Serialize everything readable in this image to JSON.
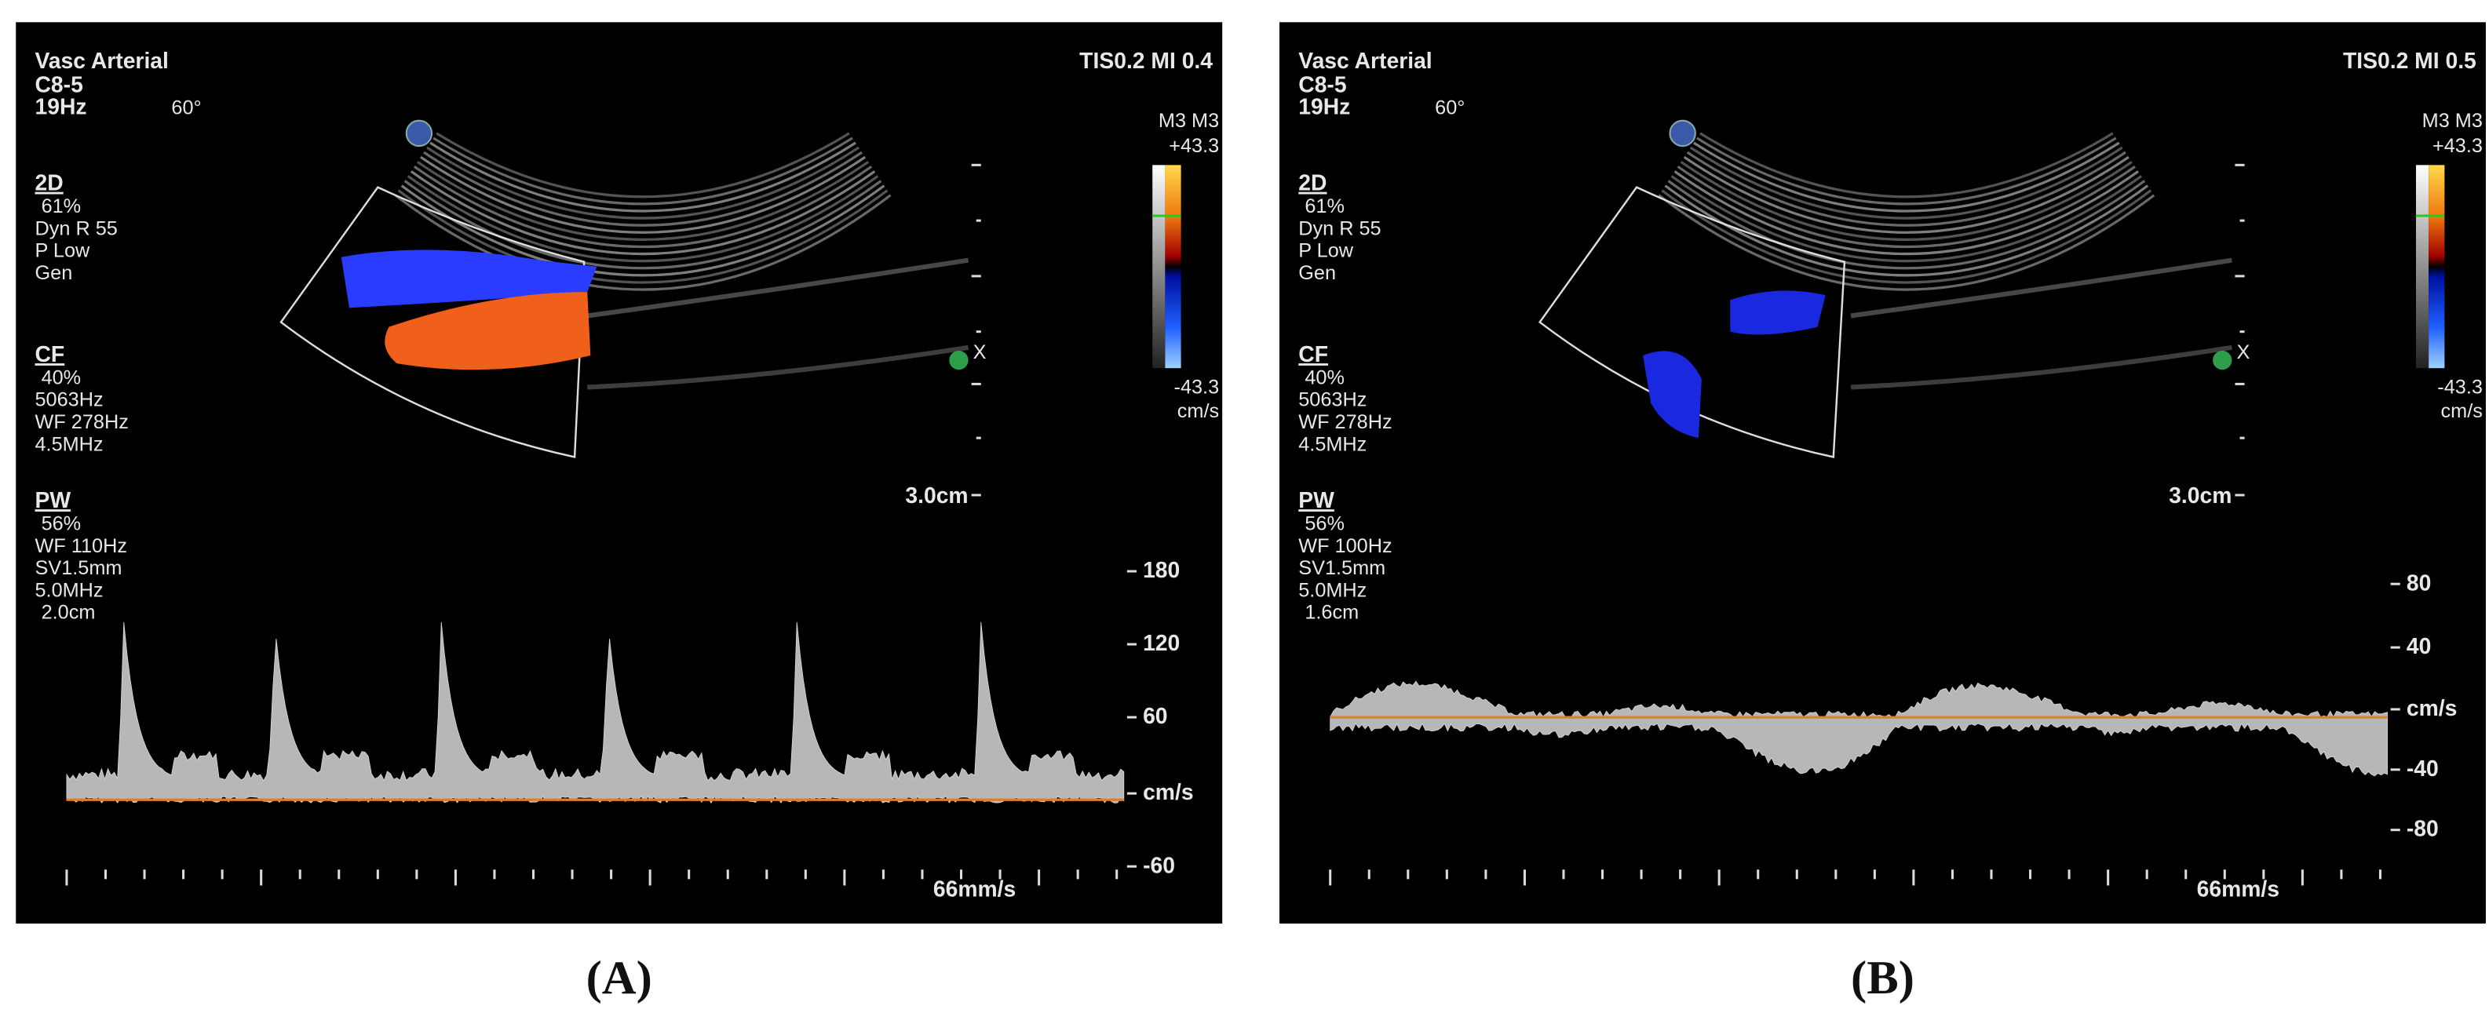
{
  "panels": [
    {
      "label": "(A)",
      "mode": "Vasc Arterial",
      "probe": "C8-5",
      "frame_rate": "19Hz",
      "angle": "60°",
      "indices": "TIS0.2  MI 0.4",
      "sections": [
        {
          "title": "2D",
          "lines": [
            "61%",
            "Dyn R 55",
            "P Low",
            "Gen"
          ]
        },
        {
          "title": "CF",
          "lines": [
            "40%",
            "5063Hz",
            "WF 278Hz",
            "4.5MHz"
          ]
        },
        {
          "title": "PW",
          "lines": [
            "56%",
            "WF 110Hz",
            "SV1.5mm",
            "5.0MHz",
            "2.0cm"
          ]
        }
      ],
      "depth": "3.0cm",
      "color_bar": {
        "top": "M3 M3",
        "max": "+43.3",
        "min": "-43.3",
        "unit": "cm/s"
      },
      "marker": "X",
      "velocity_scale": [
        "180",
        "120",
        "60",
        "cm/s",
        "-60"
      ],
      "sweep": "66mm/s"
    },
    {
      "label": "(B)",
      "mode": "Vasc Arterial",
      "probe": "C8-5",
      "frame_rate": "19Hz",
      "angle": "60°",
      "indices": "TIS0.2  MI 0.5",
      "sections": [
        {
          "title": "2D",
          "lines": [
            "61%",
            "Dyn R 55",
            "P Low",
            "Gen"
          ]
        },
        {
          "title": "CF",
          "lines": [
            "40%",
            "5063Hz",
            "WF 278Hz",
            "4.5MHz"
          ]
        },
        {
          "title": "PW",
          "lines": [
            "56%",
            "WF 100Hz",
            "SV1.5mm",
            "5.0MHz",
            "1.6cm"
          ]
        }
      ],
      "depth": "3.0cm",
      "color_bar": {
        "top": "M3 M3",
        "max": "+43.3",
        "min": "-43.3",
        "unit": "cm/s"
      },
      "marker": "X",
      "velocity_scale": [
        "80",
        "40",
        "cm/s",
        "-40",
        "-80"
      ],
      "sweep": "66mm/s"
    }
  ]
}
